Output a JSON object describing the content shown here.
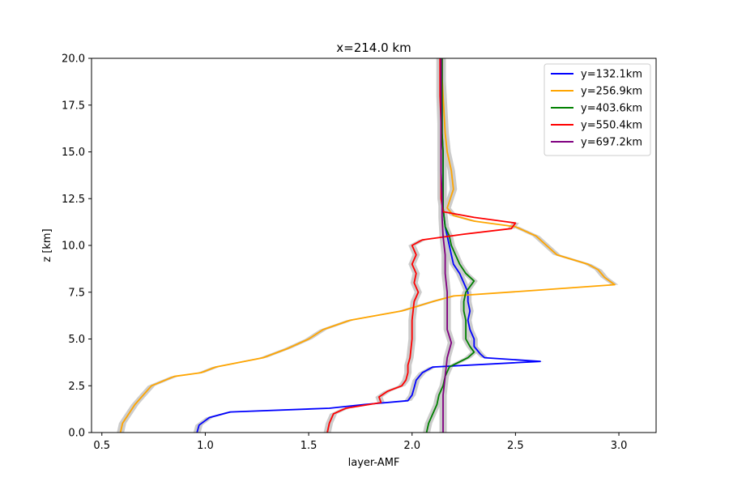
{
  "chart_data": {
    "type": "line",
    "title": "x=214.0 km",
    "xlabel": "layer-AMF",
    "ylabel": "z [km]",
    "xlim": [
      0.45,
      3.18
    ],
    "ylim": [
      0,
      20
    ],
    "xticks": [
      "0.5",
      "1.0",
      "1.5",
      "2.0",
      "2.5",
      "3.0"
    ],
    "yticks": [
      "0.0",
      "2.5",
      "5.0",
      "7.5",
      "10.0",
      "12.5",
      "15.0",
      "17.5",
      "20.0"
    ],
    "legend_position": "top-right",
    "grid": false,
    "uncertainty_band_color": "#cccccc",
    "series": [
      {
        "name": "y=132.1km",
        "color": "#0000ff",
        "z": [
          0,
          0.4,
          0.8,
          1.1,
          1.3,
          1.5,
          1.7,
          2.0,
          2.4,
          2.8,
          3.2,
          3.5,
          3.8,
          4.0,
          4.2,
          4.6,
          5.0,
          5.5,
          6.0,
          6.5,
          7.0,
          7.5,
          8.0,
          8.5,
          9.0,
          9.5,
          10.0,
          10.5,
          11.0,
          11.5,
          12.0,
          13.0,
          14.0,
          15.0,
          16.0,
          17.0,
          18.0,
          19.0,
          20.0
        ],
        "x": [
          0.96,
          0.97,
          1.02,
          1.12,
          1.6,
          1.77,
          1.98,
          2.0,
          2.01,
          2.02,
          2.05,
          2.1,
          2.62,
          2.35,
          2.33,
          2.3,
          2.3,
          2.28,
          2.27,
          2.28,
          2.27,
          2.27,
          2.25,
          2.23,
          2.2,
          2.19,
          2.18,
          2.17,
          2.16,
          2.155,
          2.15,
          2.15,
          2.15,
          2.15,
          2.145,
          2.145,
          2.145,
          2.145,
          2.145
        ]
      },
      {
        "name": "y=256.9km",
        "color": "#ffa500",
        "z": [
          0,
          0.5,
          1.0,
          1.5,
          2.0,
          2.5,
          3.0,
          3.2,
          3.5,
          4.0,
          4.5,
          5.0,
          5.5,
          6.0,
          6.5,
          7.0,
          7.3,
          7.6,
          7.9,
          8.3,
          8.7,
          9.0,
          9.5,
          10.0,
          10.5,
          11.0,
          11.3,
          11.6,
          12.0,
          13.0,
          14.0,
          15.0,
          16.0,
          17.0,
          18.0,
          19.0,
          20.0
        ],
        "x": [
          0.59,
          0.6,
          0.63,
          0.66,
          0.7,
          0.74,
          0.85,
          0.98,
          1.05,
          1.28,
          1.4,
          1.5,
          1.57,
          1.7,
          1.95,
          2.1,
          2.2,
          2.6,
          2.98,
          2.93,
          2.9,
          2.85,
          2.7,
          2.65,
          2.6,
          2.5,
          2.3,
          2.2,
          2.17,
          2.2,
          2.19,
          2.17,
          2.16,
          2.155,
          2.15,
          2.145,
          2.145
        ]
      },
      {
        "name": "y=403.6km",
        "color": "#008000",
        "z": [
          0,
          0.5,
          1.0,
          1.5,
          2.0,
          2.5,
          3.0,
          3.5,
          4.0,
          4.3,
          4.6,
          5.0,
          5.5,
          6.0,
          6.5,
          7.0,
          7.5,
          7.8,
          8.1,
          8.5,
          9.0,
          9.5,
          10.0,
          10.5,
          11.0,
          11.5,
          12.0,
          13.0,
          14.0,
          15.0,
          16.0,
          17.0,
          18.0,
          19.0,
          20.0
        ],
        "x": [
          2.07,
          2.08,
          2.1,
          2.12,
          2.13,
          2.15,
          2.16,
          2.18,
          2.27,
          2.3,
          2.28,
          2.26,
          2.26,
          2.26,
          2.25,
          2.25,
          2.26,
          2.28,
          2.3,
          2.26,
          2.23,
          2.21,
          2.19,
          2.18,
          2.16,
          2.155,
          2.15,
          2.15,
          2.15,
          2.15,
          2.145,
          2.145,
          2.145,
          2.145,
          2.145
        ]
      },
      {
        "name": "y=550.4km",
        "color": "#ff0000",
        "z": [
          0,
          0.5,
          1.0,
          1.3,
          1.6,
          1.9,
          2.2,
          2.5,
          2.8,
          3.2,
          3.6,
          4.0,
          5.0,
          6.0,
          7.0,
          7.5,
          8.0,
          8.5,
          9.0,
          9.5,
          10.0,
          10.3,
          10.6,
          10.9,
          11.2,
          11.5,
          11.8,
          12.5,
          13.5,
          15.0,
          16.5,
          18.0,
          20.0
        ],
        "x": [
          1.59,
          1.6,
          1.62,
          1.68,
          1.85,
          1.84,
          1.88,
          1.95,
          1.97,
          1.98,
          1.98,
          1.99,
          2.0,
          2.0,
          2.01,
          2.03,
          2.01,
          2.02,
          2.0,
          2.02,
          2.0,
          2.05,
          2.25,
          2.48,
          2.5,
          2.3,
          2.15,
          2.14,
          2.14,
          2.14,
          2.14,
          2.135,
          2.135
        ]
      },
      {
        "name": "y=697.2km",
        "color": "#800080",
        "z": [
          0,
          1.0,
          2.0,
          3.0,
          4.0,
          4.8,
          5.5,
          6.5,
          7.5,
          8.5,
          9.5,
          10.5,
          11.5,
          12.5,
          14.0,
          16.0,
          18.0,
          20.0
        ],
        "x": [
          2.15,
          2.15,
          2.15,
          2.16,
          2.17,
          2.19,
          2.17,
          2.17,
          2.17,
          2.16,
          2.16,
          2.15,
          2.145,
          2.145,
          2.14,
          2.14,
          2.14,
          2.14
        ]
      }
    ]
  }
}
